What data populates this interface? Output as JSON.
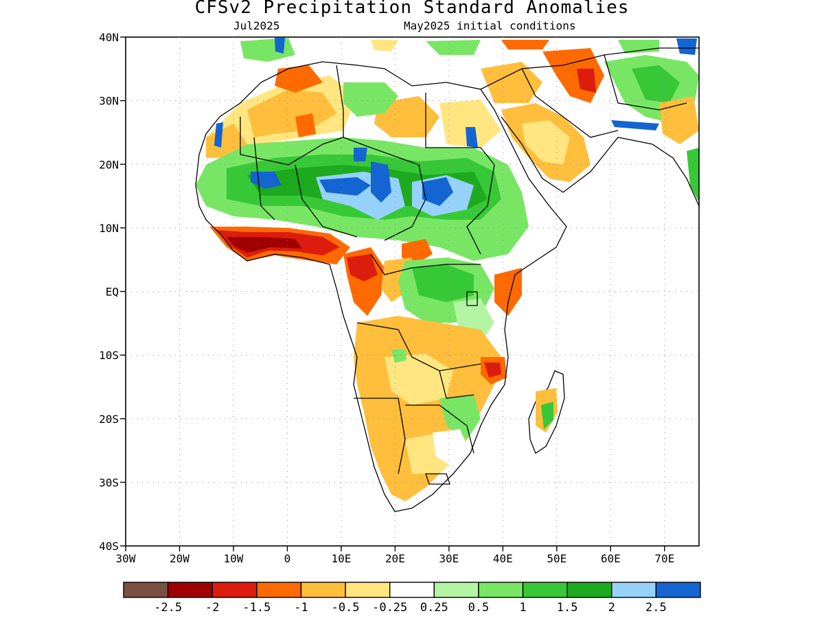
{
  "title": "CFSv2 Precipitation Standard Anomalies",
  "subtitle_left": "Jul2025",
  "subtitle_right": "May2025 initial conditions",
  "lat_ticks": [
    "40N",
    "30N",
    "20N",
    "10N",
    "EQ",
    "10S",
    "20S",
    "30S",
    "40S"
  ],
  "lon_ticks": [
    "30W",
    "20W",
    "10W",
    "0",
    "10E",
    "20E",
    "30E",
    "40E",
    "50E",
    "60E",
    "70E"
  ],
  "colorbar": {
    "colors": [
      "#7a5044",
      "#a00000",
      "#dc1c0c",
      "#ff6a00",
      "#ffbe3c",
      "#ffe680",
      "#ffffff",
      "#b4f5a5",
      "#78e664",
      "#37c837",
      "#1eaa1e",
      "#96d2fa",
      "#1464d2"
    ],
    "labels": [
      "-2.5",
      "-2",
      "-1.5",
      "-1",
      "-0.5",
      "-0.25",
      "0.25",
      "0.5",
      "1",
      "1.5",
      "2",
      "2.5"
    ]
  }
}
